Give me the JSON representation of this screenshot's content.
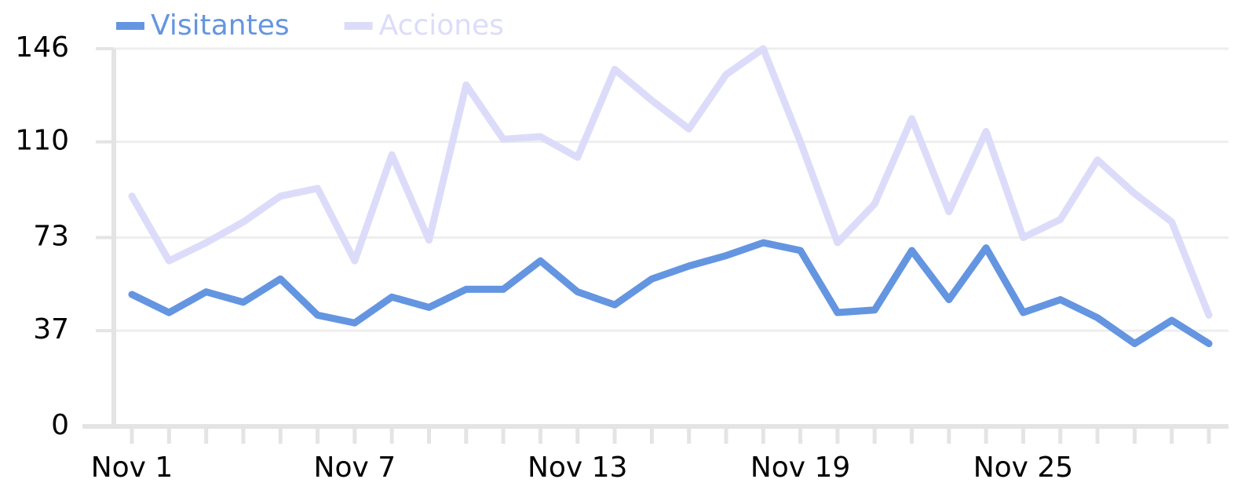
{
  "chart_data": {
    "type": "line",
    "categories": [
      "Nov 1",
      null,
      null,
      null,
      null,
      null,
      "Nov 7",
      null,
      null,
      null,
      null,
      null,
      "Nov 13",
      null,
      null,
      null,
      null,
      null,
      "Nov 19",
      null,
      null,
      null,
      null,
      null,
      "Nov 25",
      null,
      null,
      null,
      null,
      null
    ],
    "series": [
      {
        "name": "Visitantes",
        "color": "#6495e0",
        "values": [
          51,
          44,
          52,
          48,
          57,
          43,
          40,
          50,
          46,
          53,
          53,
          64,
          52,
          47,
          57,
          62,
          66,
          71,
          68,
          44,
          45,
          68,
          49,
          69,
          44,
          49,
          42,
          32,
          41,
          32
        ]
      },
      {
        "name": "Acciones",
        "color": "#dcdcfa",
        "values": [
          89,
          64,
          71,
          79,
          89,
          92,
          64,
          105,
          72,
          132,
          111,
          112,
          104,
          138,
          126,
          115,
          136,
          146,
          110,
          71,
          86,
          119,
          83,
          114,
          73,
          80,
          103,
          90,
          79,
          43
        ]
      }
    ],
    "ylim": [
      0,
      146
    ],
    "yticks": [
      0,
      37,
      73,
      110,
      146
    ],
    "grid": true,
    "legend": "top-left"
  }
}
